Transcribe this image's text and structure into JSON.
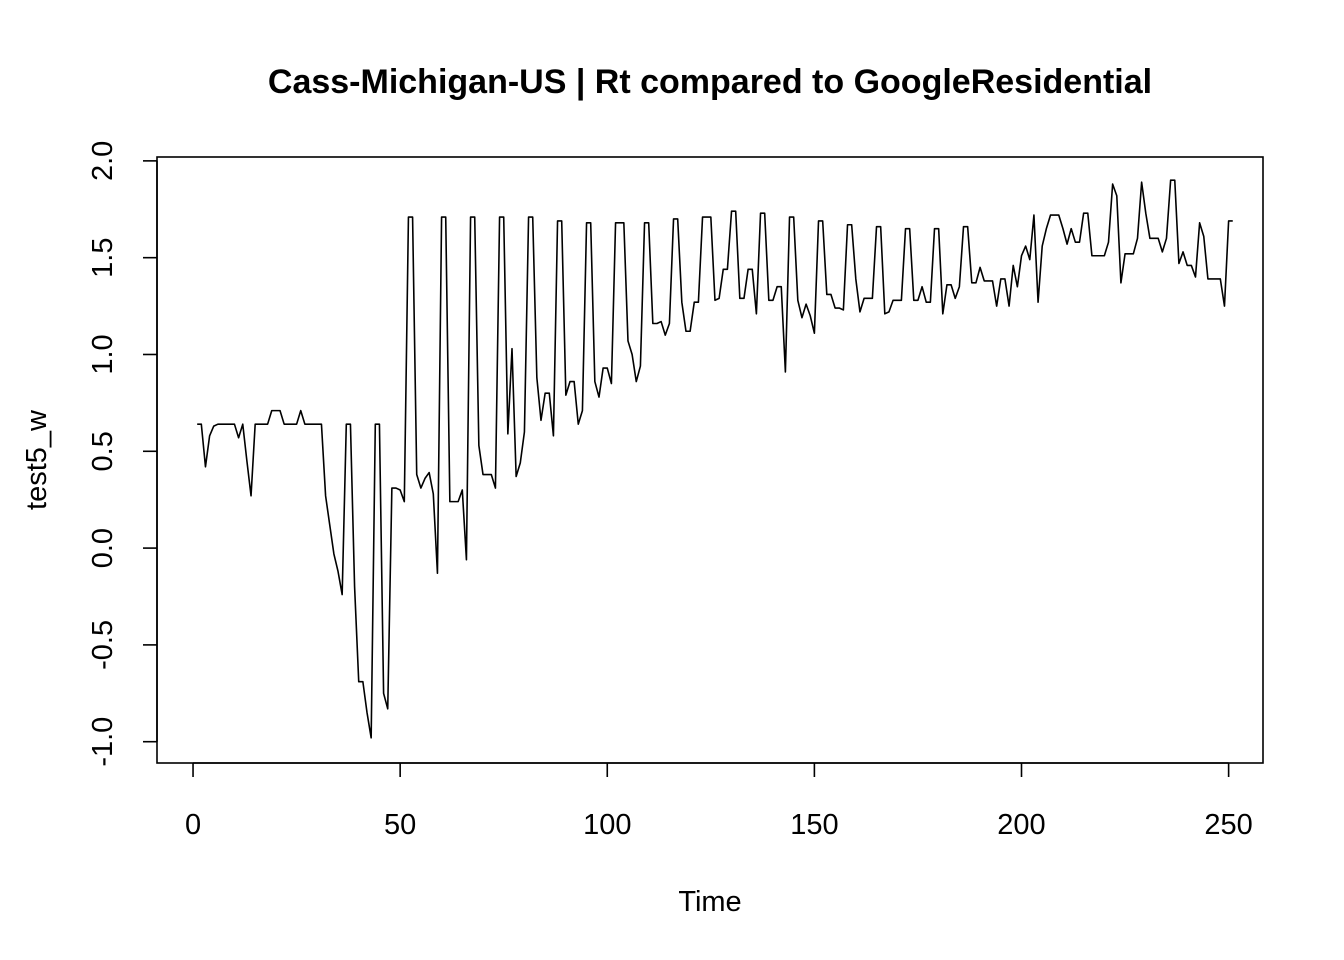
{
  "chart_data": {
    "type": "line",
    "title": "Cass-Michigan-US | Rt compared to GoogleResidential",
    "xlabel": "Time",
    "ylabel": "test5_w",
    "xlim": [
      -8.7,
      258.3
    ],
    "ylim": [
      -1.11,
      2.02
    ],
    "x_ticks": [
      0,
      50,
      100,
      150,
      200,
      250
    ],
    "x_tick_labels": [
      "0",
      "50",
      "100",
      "150",
      "200",
      "250"
    ],
    "y_ticks": [
      -1.0,
      -0.5,
      0.0,
      0.5,
      1.0,
      1.5,
      2.0
    ],
    "y_tick_labels": [
      "-1.0",
      "-0.5",
      "0.0",
      "0.5",
      "1.0",
      "1.5",
      "2.0"
    ],
    "grid": false,
    "legend": "none",
    "line_color": "#000000",
    "series": [
      {
        "x_start": 1,
        "x_step": 1,
        "values": [
          0.64,
          0.64,
          0.42,
          0.58,
          0.63,
          0.64,
          0.64,
          0.64,
          0.64,
          0.64,
          0.57,
          0.64,
          0.45,
          0.27,
          0.64,
          0.64,
          0.64,
          0.64,
          0.71,
          0.71,
          0.71,
          0.64,
          0.64,
          0.64,
          0.64,
          0.71,
          0.64,
          0.64,
          0.64,
          0.64,
          0.64,
          0.27,
          0.12,
          -0.03,
          -0.12,
          -0.24,
          0.64,
          0.64,
          -0.2,
          -0.69,
          -0.69,
          -0.85,
          -0.98,
          0.64,
          0.64,
          -0.75,
          -0.83,
          0.31,
          0.31,
          0.3,
          0.24,
          1.71,
          1.71,
          0.38,
          0.31,
          0.36,
          0.39,
          0.28,
          -0.13,
          1.71,
          1.71,
          0.24,
          0.24,
          0.24,
          0.3,
          -0.06,
          1.71,
          1.71,
          0.53,
          0.38,
          0.38,
          0.38,
          0.31,
          1.71,
          1.71,
          0.59,
          1.03,
          0.37,
          0.44,
          0.6,
          1.71,
          1.71,
          0.88,
          0.66,
          0.8,
          0.8,
          0.58,
          1.69,
          1.69,
          0.79,
          0.86,
          0.86,
          0.64,
          0.71,
          1.68,
          1.68,
          0.86,
          0.78,
          0.93,
          0.93,
          0.85,
          1.68,
          1.68,
          1.68,
          1.07,
          1.0,
          0.86,
          0.94,
          1.68,
          1.68,
          1.16,
          1.16,
          1.17,
          1.1,
          1.16,
          1.7,
          1.7,
          1.27,
          1.12,
          1.12,
          1.27,
          1.27,
          1.71,
          1.71,
          1.71,
          1.28,
          1.29,
          1.44,
          1.44,
          1.74,
          1.74,
          1.29,
          1.29,
          1.44,
          1.44,
          1.21,
          1.73,
          1.73,
          1.28,
          1.28,
          1.35,
          1.35,
          0.91,
          1.71,
          1.71,
          1.28,
          1.19,
          1.26,
          1.2,
          1.11,
          1.69,
          1.69,
          1.31,
          1.31,
          1.24,
          1.24,
          1.23,
          1.67,
          1.67,
          1.39,
          1.22,
          1.29,
          1.29,
          1.29,
          1.66,
          1.66,
          1.21,
          1.22,
          1.28,
          1.28,
          1.28,
          1.65,
          1.65,
          1.28,
          1.28,
          1.35,
          1.27,
          1.27,
          1.65,
          1.65,
          1.21,
          1.36,
          1.36,
          1.29,
          1.35,
          1.66,
          1.66,
          1.37,
          1.37,
          1.45,
          1.38,
          1.38,
          1.38,
          1.25,
          1.39,
          1.39,
          1.25,
          1.46,
          1.35,
          1.51,
          1.56,
          1.49,
          1.72,
          1.27,
          1.56,
          1.65,
          1.72,
          1.72,
          1.72,
          1.65,
          1.57,
          1.65,
          1.58,
          1.58,
          1.73,
          1.73,
          1.51,
          1.51,
          1.51,
          1.51,
          1.58,
          1.88,
          1.82,
          1.37,
          1.52,
          1.52,
          1.52,
          1.6,
          1.89,
          1.73,
          1.6,
          1.6,
          1.6,
          1.53,
          1.6,
          1.9,
          1.9,
          1.47,
          1.53,
          1.46,
          1.46,
          1.4,
          1.68,
          1.61,
          1.39,
          1.39,
          1.39,
          1.39,
          1.25,
          1.69,
          1.69
        ]
      }
    ]
  }
}
